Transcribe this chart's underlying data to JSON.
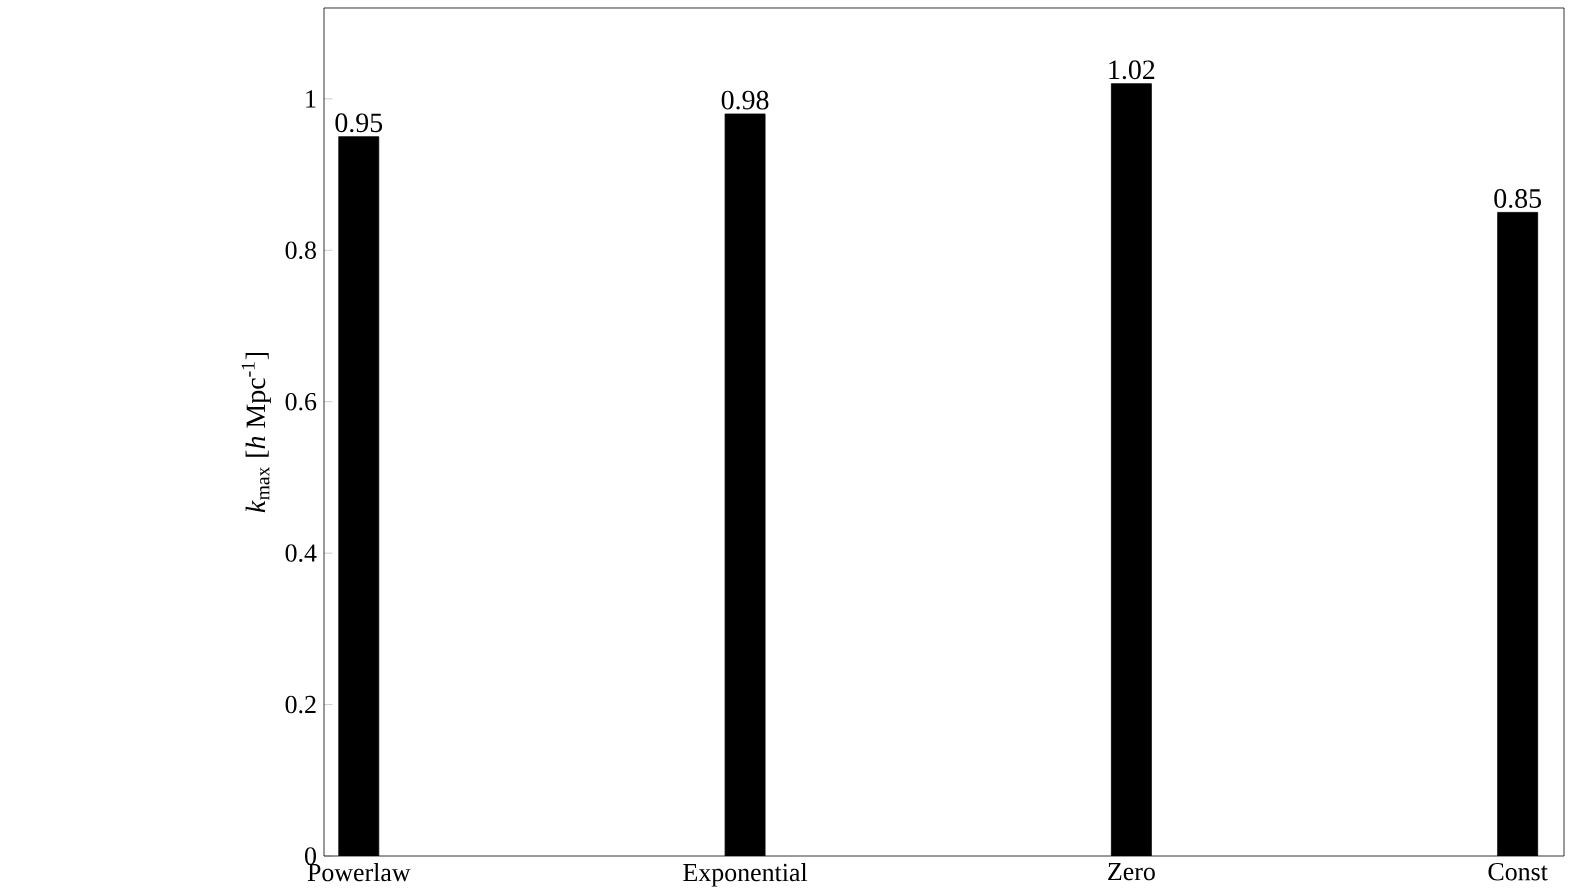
{
  "chart_data": {
    "type": "bar",
    "ylabel": "*k*$_{max}$ [*h* Mpc$^{-1}$]",
    "categories": [
      "Powerlaw",
      "Exponential",
      "Zero",
      "Const"
    ],
    "values": [
      0.95,
      0.98,
      1.02,
      0.85
    ],
    "color": "#000000",
    "ylim": [
      0,
      1.12
    ],
    "yticks": [
      0,
      0.2,
      0.4,
      0.6,
      0.8,
      1
    ],
    "data_labels": true
  }
}
